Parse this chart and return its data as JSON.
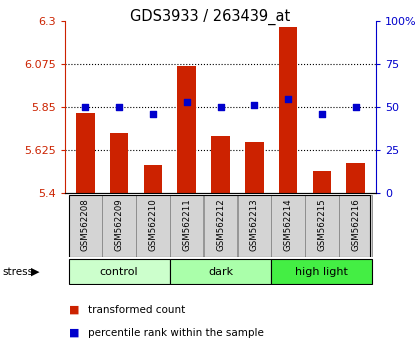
{
  "title": "GDS3933 / 263439_at",
  "samples": [
    "GSM562208",
    "GSM562209",
    "GSM562210",
    "GSM562211",
    "GSM562212",
    "GSM562213",
    "GSM562214",
    "GSM562215",
    "GSM562216"
  ],
  "transformed_counts": [
    5.82,
    5.715,
    5.545,
    6.065,
    5.7,
    5.665,
    6.27,
    5.515,
    5.555
  ],
  "percentile_ranks": [
    50,
    50,
    46,
    53,
    50,
    51,
    55,
    46,
    50
  ],
  "ylim_left": [
    5.4,
    6.3
  ],
  "ylim_right": [
    0,
    100
  ],
  "yticks_left": [
    5.4,
    5.625,
    5.85,
    6.075,
    6.3
  ],
  "ytick_labels_left": [
    "5.4",
    "5.625",
    "5.85",
    "6.075",
    "6.3"
  ],
  "yticks_right": [
    0,
    25,
    50,
    75,
    100
  ],
  "ytick_labels_right": [
    "0",
    "25",
    "50",
    "75",
    "100%"
  ],
  "bar_color": "#cc2200",
  "dot_color": "#0000cc",
  "bar_width": 0.55,
  "grid_ticks": [
    5.625,
    5.85,
    6.075
  ],
  "groups_info": [
    {
      "label": "control",
      "start": 0,
      "end": 2,
      "color": "#ccffcc"
    },
    {
      "label": "dark",
      "start": 3,
      "end": 5,
      "color": "#aaffaa"
    },
    {
      "label": "high light",
      "start": 6,
      "end": 8,
      "color": "#44ee44"
    }
  ],
  "stress_label": "stress",
  "legend_bar_label": "transformed count",
  "legend_dot_label": "percentile rank within the sample",
  "label_bg_color": "#d4d4d4",
  "left_axis_color": "#cc2200",
  "right_axis_color": "#0000cc"
}
